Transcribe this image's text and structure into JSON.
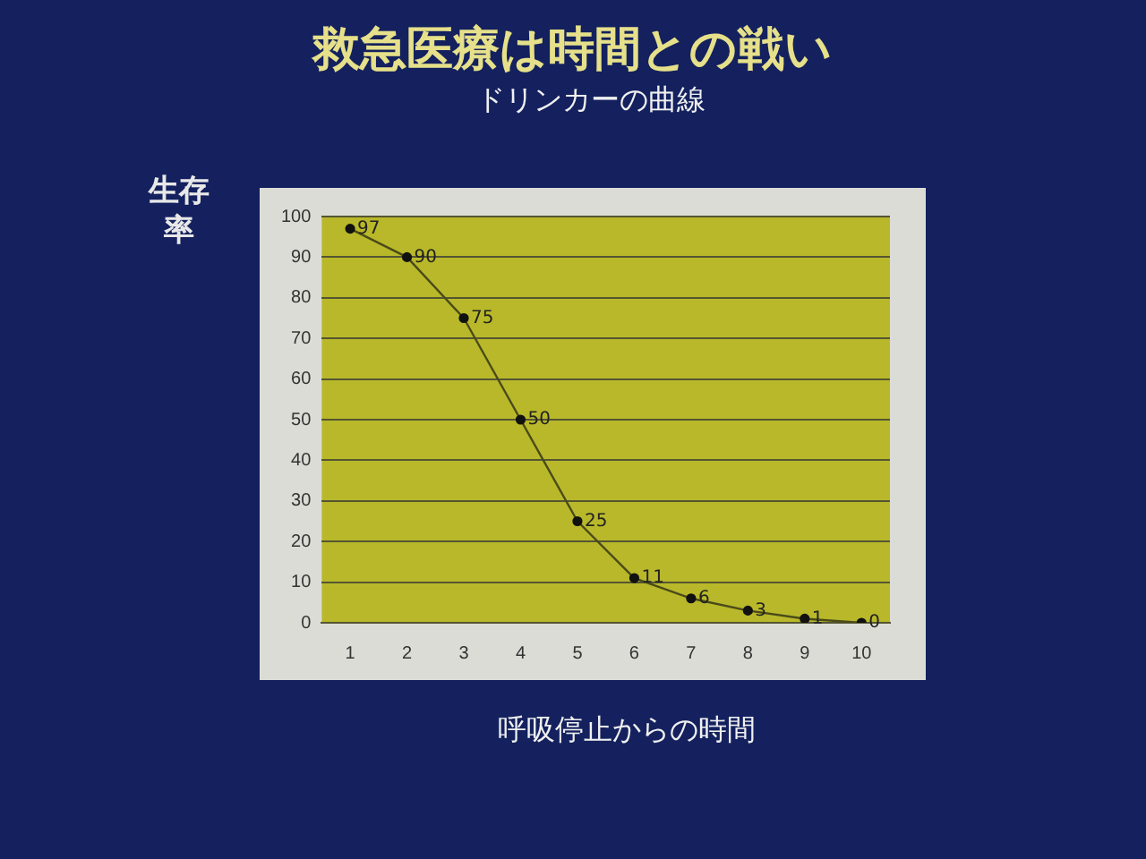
{
  "chart_data": {
    "type": "line",
    "title": "救急医療は時間との戦い",
    "subtitle": "ドリンカーの曲線",
    "xlabel": "呼吸停止からの時間",
    "ylabel": "生存率",
    "categories": [
      "1",
      "2",
      "3",
      "4",
      "5",
      "6",
      "7",
      "8",
      "9",
      "10"
    ],
    "series": [
      {
        "color": "#4a4a1a",
        "values": [
          97,
          90,
          75,
          50,
          25,
          11,
          6,
          3,
          1,
          0
        ]
      }
    ],
    "ylim": [
      0,
      100
    ],
    "yticks": [
      0,
      10,
      20,
      30,
      40,
      50,
      60,
      70,
      80,
      90,
      100
    ],
    "grid": "y",
    "legend": false,
    "marker": "circle",
    "line_style": "solid",
    "data_labels": true
  }
}
